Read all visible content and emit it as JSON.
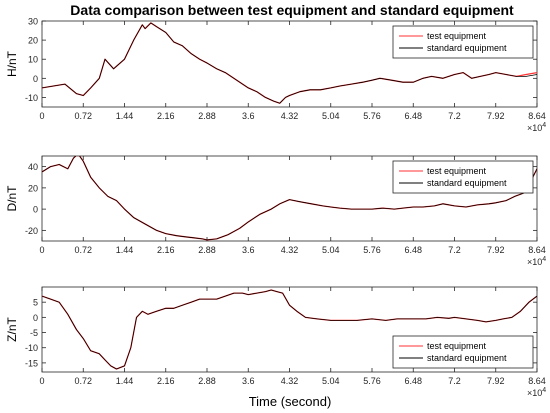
{
  "figure": {
    "title": "Data comparison between test equipment and standard equipment",
    "xlabel": "Time (second)"
  },
  "chart_data": [
    {
      "type": "line",
      "ylabel": "H/nT",
      "xlim": [
        0,
        86400
      ],
      "ylim": [
        -15,
        30
      ],
      "yticks": [
        -10,
        0,
        10,
        20,
        30
      ],
      "xticks": [
        0,
        7200,
        14400,
        21600,
        28800,
        36000,
        43200,
        50400,
        57600,
        64800,
        72000,
        79200,
        86400
      ],
      "xtick_labels": [
        "0",
        "0.72",
        "1.44",
        "2.16",
        "2.88",
        "3.6",
        "4.32",
        "5.04",
        "5.76",
        "6.48",
        "7.2",
        "7.92",
        "8.64"
      ],
      "x_exponent": "4",
      "legend_position": "top-right",
      "grid": false,
      "x": [
        0,
        2000,
        4000,
        6000,
        7200,
        8500,
        10000,
        11000,
        12500,
        14400,
        16000,
        17500,
        18000,
        19000,
        20000,
        21600,
        23000,
        24500,
        26000,
        27500,
        28800,
        30500,
        32000,
        33500,
        35000,
        36000,
        37500,
        39000,
        40500,
        41500,
        42500,
        43200,
        45000,
        46800,
        48600,
        50400,
        52000,
        54000,
        56000,
        57600,
        59000,
        61000,
        63000,
        64800,
        66500,
        68000,
        70000,
        72000,
        73500,
        75000,
        76500,
        78000,
        79200,
        81000,
        82800,
        84500,
        86400
      ],
      "series": [
        {
          "name": "test equipment",
          "color": "#ff3333",
          "values": [
            -5,
            -4,
            -3,
            -8,
            -9,
            -5,
            0,
            10,
            5,
            10,
            20,
            28,
            26,
            29,
            27,
            24,
            19,
            17,
            13,
            10,
            8,
            5,
            3,
            0,
            -3,
            -5,
            -7,
            -10,
            -12,
            -13,
            -10,
            -9,
            -7,
            -6,
            -6,
            -5,
            -4,
            -3,
            -2,
            -1,
            0,
            -1,
            -2,
            -2,
            0,
            1,
            0,
            2,
            3,
            0,
            1,
            2,
            3,
            2,
            1,
            2,
            3
          ]
        },
        {
          "name": "standard equipment",
          "color": "#000000",
          "values": [
            -5,
            -4,
            -3,
            -8,
            -9,
            -5,
            0,
            10,
            5,
            10,
            20,
            28,
            26,
            29,
            27,
            24,
            19,
            17,
            13,
            10,
            8,
            5,
            3,
            0,
            -3,
            -5,
            -7,
            -10,
            -12,
            -13,
            -10,
            -9,
            -7,
            -6,
            -6,
            -5,
            -4,
            -3,
            -2,
            -1,
            0,
            -1,
            -2,
            -2,
            0,
            1,
            0,
            2,
            3,
            0,
            1,
            2,
            3,
            2,
            1,
            1,
            2
          ]
        }
      ]
    },
    {
      "type": "line",
      "ylabel": "D/nT",
      "xlim": [
        0,
        86400
      ],
      "ylim": [
        -30,
        50
      ],
      "yticks": [
        -20,
        0,
        20,
        40
      ],
      "xticks": [
        0,
        7200,
        14400,
        21600,
        28800,
        36000,
        43200,
        50400,
        57600,
        64800,
        72000,
        79200,
        86400
      ],
      "xtick_labels": [
        "0",
        "0.72",
        "1.44",
        "2.16",
        "2.88",
        "3.6",
        "4.32",
        "5.04",
        "5.76",
        "6.48",
        "7.2",
        "7.92",
        "8.64"
      ],
      "x_exponent": "4",
      "legend_position": "top-right",
      "grid": false,
      "x": [
        0,
        1500,
        3000,
        4500,
        5500,
        6300,
        7200,
        8500,
        10000,
        11500,
        13000,
        14400,
        16000,
        18000,
        20000,
        21600,
        23500,
        25000,
        26500,
        28000,
        28800,
        30500,
        32500,
        34500,
        36000,
        38000,
        40000,
        41500,
        43200,
        45000,
        47000,
        49000,
        50400,
        52000,
        54000,
        56000,
        57600,
        59500,
        61500,
        63000,
        64800,
        66500,
        68500,
        70000,
        72000,
        74000,
        76000,
        78000,
        79200,
        81000,
        82500,
        84000,
        85200,
        86400
      ],
      "series": [
        {
          "name": "test equipment",
          "color": "#ff3333",
          "values": [
            35,
            40,
            42,
            38,
            48,
            52,
            45,
            30,
            20,
            12,
            8,
            0,
            -8,
            -14,
            -20,
            -23,
            -25,
            -26,
            -27,
            -28,
            -29,
            -28,
            -24,
            -18,
            -12,
            -5,
            0,
            5,
            9,
            7,
            5,
            3,
            2,
            1,
            0,
            0,
            0,
            1,
            0,
            1,
            2,
            2,
            3,
            5,
            3,
            2,
            4,
            5,
            6,
            8,
            12,
            15,
            25,
            38
          ]
        },
        {
          "name": "standard equipment",
          "color": "#000000",
          "values": [
            35,
            40,
            42,
            38,
            48,
            52,
            45,
            30,
            20,
            12,
            8,
            0,
            -8,
            -14,
            -20,
            -23,
            -25,
            -26,
            -27,
            -28,
            -29,
            -28,
            -24,
            -18,
            -12,
            -5,
            0,
            5,
            9,
            7,
            5,
            3,
            2,
            1,
            0,
            0,
            0,
            1,
            0,
            1,
            2,
            2,
            3,
            5,
            3,
            2,
            4,
            5,
            6,
            8,
            12,
            15,
            25,
            38
          ]
        }
      ]
    },
    {
      "type": "line",
      "ylabel": "Z/nT",
      "xlim": [
        0,
        86400
      ],
      "ylim": [
        -18,
        10
      ],
      "yticks": [
        -15,
        -10,
        -5,
        0,
        5
      ],
      "xticks": [
        0,
        7200,
        14400,
        21600,
        28800,
        36000,
        43200,
        50400,
        57600,
        64800,
        72000,
        79200,
        86400
      ],
      "xtick_labels": [
        "0",
        "0.72",
        "1.44",
        "2.16",
        "2.88",
        "3.6",
        "4.32",
        "5.04",
        "5.76",
        "6.48",
        "7.2",
        "7.92",
        "8.64"
      ],
      "x_exponent": "4",
      "legend_position": "bottom-right",
      "grid": false,
      "x": [
        0,
        1500,
        3000,
        4500,
        6000,
        7200,
        8500,
        10000,
        11000,
        12000,
        13000,
        14400,
        15500,
        16500,
        17500,
        18500,
        20000,
        21600,
        23000,
        24500,
        26000,
        27500,
        28800,
        30500,
        32000,
        33500,
        35000,
        36000,
        37500,
        39000,
        40000,
        41000,
        42000,
        43200,
        44500,
        46000,
        48000,
        50400,
        53000,
        55000,
        57600,
        60000,
        62000,
        64800,
        67000,
        69000,
        71000,
        72000,
        74000,
        76000,
        77500,
        79200,
        80500,
        82000,
        83500,
        85000,
        86400
      ],
      "series": [
        {
          "name": "test equipment",
          "color": "#ff3333",
          "values": [
            7,
            6,
            5,
            1,
            -4,
            -7,
            -11,
            -12,
            -14,
            -16,
            -17,
            -16,
            -10,
            0,
            2,
            1,
            2,
            3,
            3,
            4,
            5,
            6,
            6,
            6,
            7,
            8,
            8,
            7.5,
            8,
            8.5,
            9,
            8.5,
            8,
            4,
            2,
            0,
            -0.5,
            -1,
            -1,
            -1,
            -0.5,
            -1,
            -0.5,
            -0.5,
            -0.5,
            0,
            -0.3,
            0,
            -0.5,
            -1,
            -1.5,
            -1,
            -0.5,
            0,
            2,
            5,
            7
          ]
        },
        {
          "name": "standard equipment",
          "color": "#000000",
          "values": [
            7,
            6,
            5,
            1,
            -4,
            -7,
            -11,
            -12,
            -14,
            -16,
            -17,
            -16,
            -10,
            0,
            2,
            1,
            2,
            3,
            3,
            4,
            5,
            6,
            6,
            6,
            7,
            8,
            8,
            7.5,
            8,
            8.5,
            9,
            8.5,
            8,
            4,
            2,
            0,
            -0.5,
            -1,
            -1,
            -1,
            -0.5,
            -1,
            -0.5,
            -0.5,
            -0.5,
            0,
            -0.3,
            0,
            -0.5,
            -1,
            -1.5,
            -1,
            -0.5,
            0,
            2,
            5,
            7
          ]
        }
      ]
    }
  ]
}
